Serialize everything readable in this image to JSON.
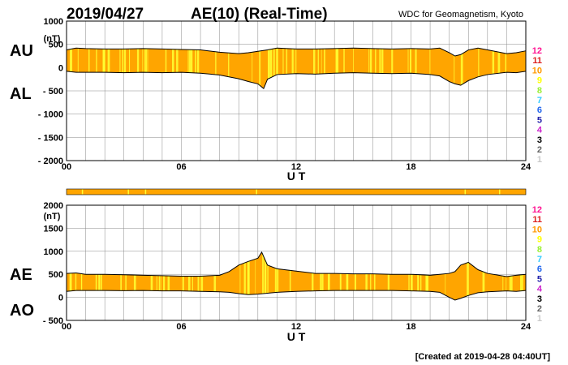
{
  "header": {
    "date": "2019/04/27",
    "title": "AE(10) (Real-Time)",
    "source": "WDC for Geomagnetism, Kyoto",
    "footer": "[Created at 2019-04-28 04:40UT]"
  },
  "colors": {
    "orange": "#ffa500",
    "yellow": "#ffff33",
    "frame": "#000000",
    "grid": "#888888",
    "strip": "#ffa500"
  },
  "station_legend": [
    {
      "label": "12",
      "color": "#ff1493"
    },
    {
      "label": "11",
      "color": "#dc1e1e"
    },
    {
      "label": "10",
      "color": "#ff9900"
    },
    {
      "label": "9",
      "color": "#ffff00"
    },
    {
      "label": "8",
      "color": "#99ee33"
    },
    {
      "label": "7",
      "color": "#33ccff"
    },
    {
      "label": "6",
      "color": "#2266ee"
    },
    {
      "label": "5",
      "color": "#2222aa"
    },
    {
      "label": "4",
      "color": "#cc22cc"
    },
    {
      "label": "3",
      "color": "#000000"
    },
    {
      "label": "2",
      "color": "#666666"
    },
    {
      "label": "1",
      "color": "#c8c8c8"
    }
  ],
  "chart_data": [
    {
      "type": "area",
      "panel": "AU/AL",
      "upper_label": "AU",
      "lower_label": "AL",
      "unit_label": "(nT)",
      "xlabel": "U T",
      "xlim": [
        0,
        24
      ],
      "ylim": [
        -2000,
        1000
      ],
      "x_ticks": [
        "00",
        "06",
        "12",
        "18",
        "24"
      ],
      "y_ticks": [
        "1000",
        "500",
        "0",
        "- 500",
        "- 1000",
        "- 1500",
        "- 2000"
      ],
      "y_tick_values": [
        1000,
        500,
        0,
        -500,
        -1000,
        -1500,
        -2000
      ],
      "series": [
        {
          "name": "AU",
          "x": [
            0,
            0.5,
            1,
            2,
            3,
            4,
            5,
            6,
            7,
            8,
            9,
            9.5,
            10,
            10.5,
            11,
            12,
            13,
            14,
            15,
            16,
            17,
            18,
            19,
            19.5,
            20,
            20.3,
            20.6,
            21,
            21.5,
            22,
            23,
            23.5,
            24
          ],
          "values": [
            380,
            420,
            410,
            400,
            400,
            410,
            400,
            390,
            380,
            330,
            300,
            320,
            350,
            380,
            420,
            400,
            400,
            410,
            420,
            410,
            400,
            410,
            400,
            420,
            320,
            250,
            280,
            380,
            420,
            380,
            300,
            320,
            360
          ]
        },
        {
          "name": "AL",
          "x": [
            0,
            0.5,
            1,
            2,
            3,
            4,
            5,
            6,
            7,
            8,
            9,
            9.5,
            10,
            10.3,
            10.5,
            11,
            12,
            13,
            14,
            15,
            16,
            17,
            18,
            19,
            19.5,
            20,
            20.3,
            20.6,
            21,
            21.5,
            22,
            23,
            23.5,
            24
          ],
          "values": [
            -80,
            -100,
            -100,
            -100,
            -110,
            -100,
            -110,
            -100,
            -120,
            -160,
            -240,
            -300,
            -350,
            -450,
            -250,
            -150,
            -130,
            -140,
            -120,
            -110,
            -120,
            -130,
            -120,
            -150,
            -180,
            -300,
            -350,
            -380,
            -280,
            -200,
            -150,
            -100,
            -110,
            -80
          ]
        }
      ]
    },
    {
      "type": "area",
      "panel": "AE/AO",
      "upper_label": "AE",
      "lower_label": "AO",
      "unit_label": "(nT)",
      "xlabel": "U T",
      "xlim": [
        0,
        24
      ],
      "ylim": [
        -500,
        2000
      ],
      "x_ticks": [
        "00",
        "06",
        "12",
        "18",
        "24"
      ],
      "y_ticks": [
        "2000",
        "1500",
        "1000",
        "500",
        "0",
        "- 500"
      ],
      "y_tick_values": [
        2000,
        1500,
        1000,
        500,
        0,
        -500
      ],
      "series": [
        {
          "name": "AE",
          "x": [
            0,
            0.5,
            1,
            2,
            3,
            4,
            5,
            6,
            7,
            8,
            8.5,
            9,
            9.5,
            10,
            10.2,
            10.5,
            11,
            12,
            13,
            14,
            15,
            16,
            17,
            18,
            19,
            19.5,
            20,
            20.3,
            20.6,
            21,
            21.5,
            22,
            23,
            23.5,
            24
          ],
          "values": [
            520,
            530,
            500,
            500,
            490,
            480,
            470,
            460,
            460,
            480,
            560,
            700,
            780,
            850,
            980,
            700,
            620,
            570,
            520,
            520,
            510,
            510,
            500,
            500,
            480,
            500,
            520,
            560,
            700,
            760,
            600,
            520,
            450,
            480,
            500
          ]
        },
        {
          "name": "AO",
          "x": [
            0,
            0.5,
            1,
            2,
            3,
            4,
            5,
            6,
            7,
            8,
            8.5,
            9,
            9.5,
            10,
            10.5,
            11,
            12,
            13,
            14,
            15,
            16,
            17,
            18,
            19,
            19.5,
            20,
            20.3,
            20.6,
            21,
            21.5,
            22,
            23,
            23.5,
            24
          ],
          "values": [
            130,
            150,
            150,
            150,
            145,
            150,
            140,
            140,
            130,
            120,
            110,
            80,
            60,
            70,
            90,
            110,
            130,
            140,
            150,
            150,
            150,
            150,
            140,
            130,
            110,
            0,
            -60,
            -20,
            40,
            100,
            120,
            140,
            130,
            150
          ]
        }
      ]
    }
  ]
}
